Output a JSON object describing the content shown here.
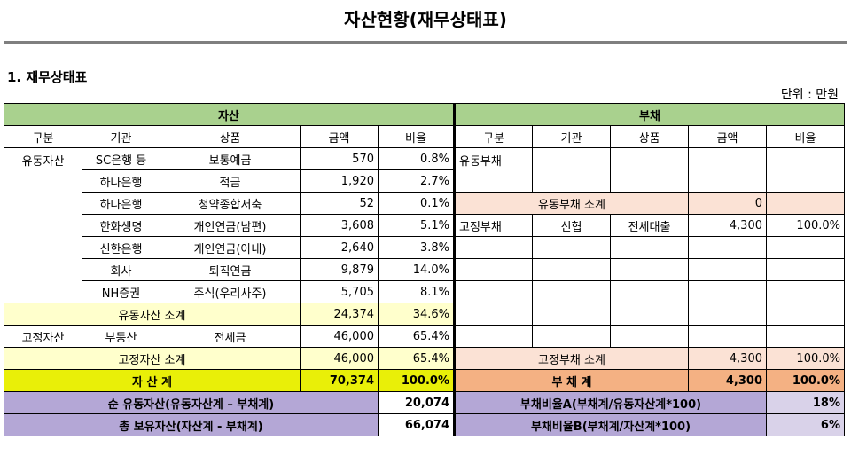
{
  "title": "자산현황(재무상태표)",
  "section": "1. 재무상태표",
  "unit": "단위 : 만원",
  "headers": {
    "asset": "자산",
    "liability": "부채",
    "columns": [
      "구분",
      "기관",
      "상품",
      "금액",
      "비율"
    ]
  },
  "assets": {
    "current_label": "유동자산",
    "rows": [
      {
        "institution": "SC은행 등",
        "product": "보통예금",
        "amount": "570",
        "ratio": "0.8%"
      },
      {
        "institution": "하나은행",
        "product": "적금",
        "amount": "1,920",
        "ratio": "2.7%"
      },
      {
        "institution": "하나은행",
        "product": "청약종합저축",
        "amount": "52",
        "ratio": "0.1%"
      },
      {
        "institution": "한화생명",
        "product": "개인연금(남편)",
        "amount": "3,608",
        "ratio": "5.1%"
      },
      {
        "institution": "신한은행",
        "product": "개인연금(아내)",
        "amount": "2,640",
        "ratio": "3.8%"
      },
      {
        "institution": "회사",
        "product": "퇴직연금",
        "amount": "9,879",
        "ratio": "14.0%"
      },
      {
        "institution": "NH증권",
        "product": "주식(우리사주)",
        "amount": "5,705",
        "ratio": "8.1%"
      }
    ],
    "current_subtotal": {
      "label": "유동자산 소계",
      "amount": "24,374",
      "ratio": "34.6%"
    },
    "fixed_label": "고정자산",
    "fixed_row": {
      "institution": "부동산",
      "product": "전세금",
      "amount": "46,000",
      "ratio": "65.4%"
    },
    "fixed_subtotal": {
      "label": "고정자산 소계",
      "amount": "46,000",
      "ratio": "65.4%"
    },
    "total": {
      "label": "자 산 계",
      "amount": "70,374",
      "ratio": "100.0%"
    }
  },
  "liabilities": {
    "current_label": "유동부채",
    "current_subtotal": {
      "label": "유동부채 소계",
      "amount": "0",
      "ratio": ""
    },
    "fixed_label": "고정부채",
    "fixed_row": {
      "institution": "신협",
      "product": "전세대출",
      "amount": "4,300",
      "ratio": "100.0%"
    },
    "fixed_subtotal": {
      "label": "고정부채 소계",
      "amount": "4,300",
      "ratio": "100.0%"
    },
    "total": {
      "label": "부 채 계",
      "amount": "4,300",
      "ratio": "100.0%"
    }
  },
  "summary": [
    {
      "label": "순 유동자산(유동자산계 – 부채계)",
      "value": "20,074",
      "label2": "부채비율A(부채계/유동자산계*100)",
      "value2": "18%"
    },
    {
      "label": "총 보유자산(자산계 - 부채계)",
      "value": "66,074",
      "label2": "부채비율B(부채계/자산계*100)",
      "value2": "6%"
    }
  ]
}
